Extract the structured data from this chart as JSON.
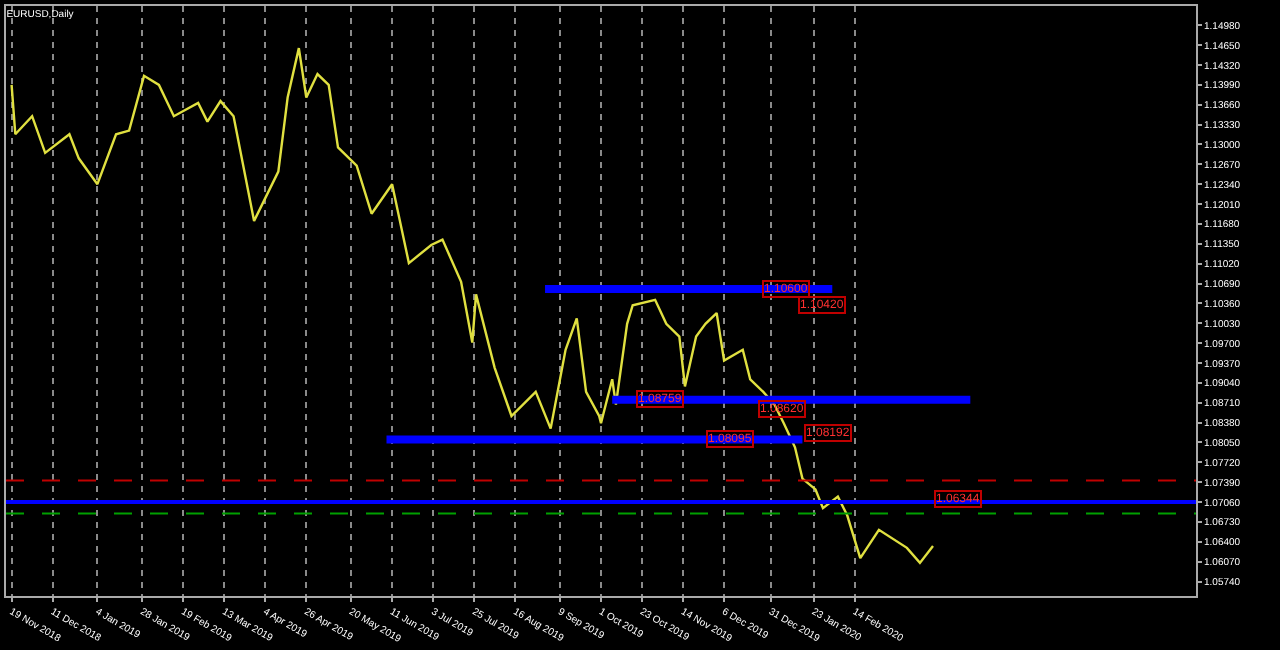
{
  "chart_data": {
    "type": "line",
    "title": "EURUSD,Daily",
    "series": [
      {
        "color": "#e0e040",
        "x": [
          "2018-11-19",
          "2018-11-21",
          "2018-11-30",
          "2018-12-07",
          "2018-12-20",
          "2018-12-25",
          "2019-01-04",
          "2019-01-14",
          "2019-01-21",
          "2019-01-29",
          "2019-02-06",
          "2019-02-14",
          "2019-02-27",
          "2019-03-04",
          "2019-03-11",
          "2019-03-18",
          "2019-03-29",
          "2019-04-11",
          "2019-04-16",
          "2019-04-22",
          "2019-04-26",
          "2019-05-02",
          "2019-05-08",
          "2019-05-13",
          "2019-05-23",
          "2019-05-31",
          "2019-06-11",
          "2019-06-20",
          "2019-07-02",
          "2019-07-08",
          "2019-07-18",
          "2019-07-24",
          "2019-07-26",
          "2019-08-05",
          "2019-08-14",
          "2019-08-27",
          "2019-09-04",
          "2019-09-12",
          "2019-09-18",
          "2019-09-23",
          "2019-09-30",
          "2019-10-01",
          "2019-10-07",
          "2019-10-09",
          "2019-10-15",
          "2019-10-18",
          "2019-10-30",
          "2019-11-05",
          "2019-11-12",
          "2019-11-15",
          "2019-11-21",
          "2019-11-26",
          "2019-12-02",
          "2019-12-06",
          "2019-12-16",
          "2019-12-20",
          "2019-12-27",
          "2020-01-02",
          "2020-01-07",
          "2020-01-13",
          "2020-01-17",
          "2020-01-24",
          "2020-01-28",
          "2020-02-05",
          "2020-02-10",
          "2020-02-17",
          "2020-02-27",
          "2020-03-13",
          "2020-03-20",
          "2020-03-27"
        ],
        "values": [
          1.1399,
          1.1317,
          1.1347,
          1.1286,
          1.1317,
          1.1277,
          1.1234,
          1.1317,
          1.1323,
          1.1414,
          1.1399,
          1.1347,
          1.1369,
          1.1338,
          1.1372,
          1.1347,
          1.1173,
          1.1255,
          1.1378,
          1.146,
          1.1378,
          1.1417,
          1.1399,
          1.1295,
          1.1265,
          1.1185,
          1.1234,
          1.1103,
          1.1133,
          1.1142,
          1.1072,
          1.0971,
          1.1051,
          1.0929,
          1.0849,
          1.0889,
          1.0828,
          1.0959,
          1.1011,
          1.0889,
          1.0849,
          1.0837,
          1.091,
          1.0868,
          1.1002,
          1.1033,
          1.1042,
          1.1002,
          1.0981,
          1.0898,
          1.0981,
          1.1002,
          1.102,
          1.0941,
          1.0959,
          1.091,
          1.0889,
          1.0868,
          1.0837,
          1.0797,
          1.0745,
          1.0727,
          1.0696,
          1.0715,
          1.0684,
          1.0613,
          1.066,
          1.063,
          1.0605,
          1.0633
        ]
      },
      {
        "color": "#0000ff",
        "x": [
          "2019-09-01",
          "2020-02-02"
        ],
        "values": [
          1.106,
          1.106
        ]
      },
      {
        "color": "#0000ff",
        "x": [
          "2019-10-07",
          "2020-04-16"
        ],
        "values": [
          1.0876,
          1.0876
        ]
      },
      {
        "color": "#0000ff",
        "x": [
          "2019-06-08",
          "2020-01-17"
        ],
        "values": [
          1.081,
          1.081
        ]
      }
    ],
    "ref_lines": [
      {
        "axis": "y",
        "value": 1.0706,
        "color": "#0000ff",
        "line_style": "solid"
      },
      {
        "axis": "y",
        "value": 1.0742,
        "color": "#c00000",
        "line_style": "dashed"
      },
      {
        "axis": "y",
        "value": 1.0687,
        "color": "#00a000",
        "line_style": "dashed"
      }
    ],
    "annotations": [
      {
        "text": "1.10600",
        "x": "2020-01-08",
        "y": 1.106
      },
      {
        "text": "1.10420",
        "x": "2020-01-28",
        "y": 1.1032
      },
      {
        "text": "1.08759",
        "x": "2019-11-02",
        "y": 1.08759
      },
      {
        "text": "1.08620",
        "x": "2020-01-06",
        "y": 1.0862
      },
      {
        "text": "1.08095",
        "x": "2019-12-09",
        "y": 1.08095
      },
      {
        "text": "1.08192",
        "x": "2020-01-31",
        "y": 1.08192
      },
      {
        "text": "1.06344",
        "x": "2020-04-09",
        "y": 1.0712
      }
    ],
    "xlim": [
      "2018-11-16",
      "2020-08-15"
    ],
    "xticks": [
      {
        "value": "2018-11-19",
        "label": "19 Nov 2018"
      },
      {
        "value": "2018-12-11",
        "label": "11 Dec 2018"
      },
      {
        "value": "2019-01-04",
        "label": "4 Jan 2019"
      },
      {
        "value": "2019-01-28",
        "label": "28 Jan 2019"
      },
      {
        "value": "2019-02-19",
        "label": "19 Feb 2019"
      },
      {
        "value": "2019-03-13",
        "label": "13 Mar 2019"
      },
      {
        "value": "2019-04-04",
        "label": "4 Apr 2019"
      },
      {
        "value": "2019-04-26",
        "label": "26 Apr 2019"
      },
      {
        "value": "2019-05-20",
        "label": "20 May 2019"
      },
      {
        "value": "2019-06-11",
        "label": "11 Jun 2019"
      },
      {
        "value": "2019-07-03",
        "label": "3 Jul 2019"
      },
      {
        "value": "2019-07-25",
        "label": "25 Jul 2019"
      },
      {
        "value": "2019-08-16",
        "label": "16 Aug 2019"
      },
      {
        "value": "2019-09-09",
        "label": "9 Sep 2019"
      },
      {
        "value": "2019-10-01",
        "label": "1 Oct 2019"
      },
      {
        "value": "2019-10-23",
        "label": "23 Oct 2019"
      },
      {
        "value": "2019-11-14",
        "label": "14 Nov 2019"
      },
      {
        "value": "2019-12-06",
        "label": "6 Dec 2019"
      },
      {
        "value": "2019-12-31",
        "label": "31 Dec 2019"
      },
      {
        "value": "2020-01-23",
        "label": "23 Jan 2020"
      },
      {
        "value": "2020-02-14",
        "label": "14 Feb 2020"
      }
    ],
    "ylim": [
      1.055,
      1.153
    ],
    "yticks": [
      {
        "value": 1.1498,
        "label": "1.14980"
      },
      {
        "value": 1.1465,
        "label": "1.14650"
      },
      {
        "value": 1.1432,
        "label": "1.14320"
      },
      {
        "value": 1.1399,
        "label": "1.13990"
      },
      {
        "value": 1.1366,
        "label": "1.13660"
      },
      {
        "value": 1.1333,
        "label": "1.13330"
      },
      {
        "value": 1.13,
        "label": "1.13000"
      },
      {
        "value": 1.1267,
        "label": "1.12670"
      },
      {
        "value": 1.1234,
        "label": "1.12340"
      },
      {
        "value": 1.1201,
        "label": "1.12010"
      },
      {
        "value": 1.1168,
        "label": "1.11680"
      },
      {
        "value": 1.1135,
        "label": "1.11350"
      },
      {
        "value": 1.1102,
        "label": "1.11020"
      },
      {
        "value": 1.1069,
        "label": "1.10690"
      },
      {
        "value": 1.1036,
        "label": "1.10360"
      },
      {
        "value": 1.1003,
        "label": "1.10030"
      },
      {
        "value": 1.097,
        "label": "1.09700"
      },
      {
        "value": 1.0937,
        "label": "1.09370"
      },
      {
        "value": 1.0904,
        "label": "1.09040"
      },
      {
        "value": 1.0871,
        "label": "1.08710"
      },
      {
        "value": 1.0838,
        "label": "1.08380"
      },
      {
        "value": 1.0805,
        "label": "1.08050"
      },
      {
        "value": 1.0772,
        "label": "1.07720"
      },
      {
        "value": 1.0739,
        "label": "1.07390"
      },
      {
        "value": 1.0706,
        "label": "1.07060"
      },
      {
        "value": 1.0673,
        "label": "1.06730"
      },
      {
        "value": 1.064,
        "label": "1.06400"
      },
      {
        "value": 1.0607,
        "label": "1.06070"
      },
      {
        "value": 1.0574,
        "label": "1.05740"
      }
    ],
    "grid": "x",
    "line_style": "solid",
    "marker": "none"
  }
}
